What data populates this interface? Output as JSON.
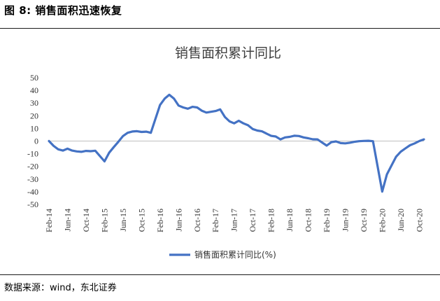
{
  "figure_caption": "图 8:  销售面积迅速恢复",
  "source_note": "数据来源：wind，东北证券",
  "chart_data": {
    "type": "line",
    "title": "销售面积累计同比",
    "xlabel": "",
    "ylabel": "",
    "ylim": [
      -50,
      50
    ],
    "yticks": [
      50,
      40,
      30,
      20,
      10,
      0,
      -10,
      -20,
      -30,
      -40,
      -50
    ],
    "x_tick_labels": [
      "Feb-14",
      "Jun-14",
      "Oct-14",
      "Feb-15",
      "Jun-15",
      "Oct-15",
      "Feb-16",
      "Jun-16",
      "Oct-16",
      "Feb-17",
      "Jun-17",
      "Oct-17",
      "Feb-18",
      "Jun-18",
      "Oct-18",
      "Feb-19",
      "Jun-19",
      "Oct-19",
      "Feb-20",
      "Jun-20",
      "Oct-20"
    ],
    "grid": false,
    "legend_position": "bottom",
    "line_color": "#4472C4",
    "series": [
      {
        "name": "销售面积累计同比(%)",
        "x": [
          "2014-02",
          "2014-03",
          "2014-04",
          "2014-05",
          "2014-06",
          "2014-07",
          "2014-08",
          "2014-09",
          "2014-10",
          "2014-11",
          "2014-12",
          "2015-02",
          "2015-03",
          "2015-04",
          "2015-05",
          "2015-06",
          "2015-07",
          "2015-08",
          "2015-09",
          "2015-10",
          "2015-11",
          "2015-12",
          "2016-02",
          "2016-03",
          "2016-04",
          "2016-05",
          "2016-06",
          "2016-07",
          "2016-08",
          "2016-09",
          "2016-10",
          "2016-11",
          "2016-12",
          "2017-02",
          "2017-03",
          "2017-04",
          "2017-05",
          "2017-06",
          "2017-07",
          "2017-08",
          "2017-09",
          "2017-10",
          "2017-11",
          "2017-12",
          "2018-02",
          "2018-03",
          "2018-04",
          "2018-05",
          "2018-06",
          "2018-07",
          "2018-08",
          "2018-09",
          "2018-10",
          "2018-11",
          "2018-12",
          "2019-02",
          "2019-03",
          "2019-04",
          "2019-05",
          "2019-06",
          "2019-07",
          "2019-08",
          "2019-09",
          "2019-10",
          "2019-11",
          "2019-12",
          "2020-02",
          "2020-03",
          "2020-04",
          "2020-05",
          "2020-06",
          "2020-07",
          "2020-08",
          "2020-09",
          "2020-10",
          "2020-11"
        ],
        "values": [
          0,
          -3.8,
          -6.5,
          -7.5,
          -6,
          -7.5,
          -8.2,
          -8.5,
          -7.8,
          -8,
          -7.6,
          -16,
          -9.2,
          -4.8,
          -0.5,
          4,
          6.5,
          7.5,
          7.8,
          7.2,
          7.4,
          6.5,
          28.5,
          33.5,
          36.5,
          33.5,
          28,
          26.5,
          25.5,
          27,
          26.5,
          24,
          22.5,
          23.7,
          25,
          19,
          15.5,
          14,
          16,
          14,
          12.5,
          9.5,
          8.3,
          7.7,
          4.1,
          3.6,
          1.3,
          2.9,
          3.3,
          4.2,
          4,
          2.9,
          2.2,
          1.4,
          1.3,
          -3.6,
          -0.9,
          -0.3,
          -1.6,
          -1.8,
          -1.3,
          -0.6,
          -0.1,
          0.1,
          0.2,
          -0.1,
          -39.9,
          -26.3,
          -19.3,
          -12.3,
          -8.4,
          -5.8,
          -3.3,
          -1.8,
          0,
          1.3
        ]
      }
    ]
  }
}
